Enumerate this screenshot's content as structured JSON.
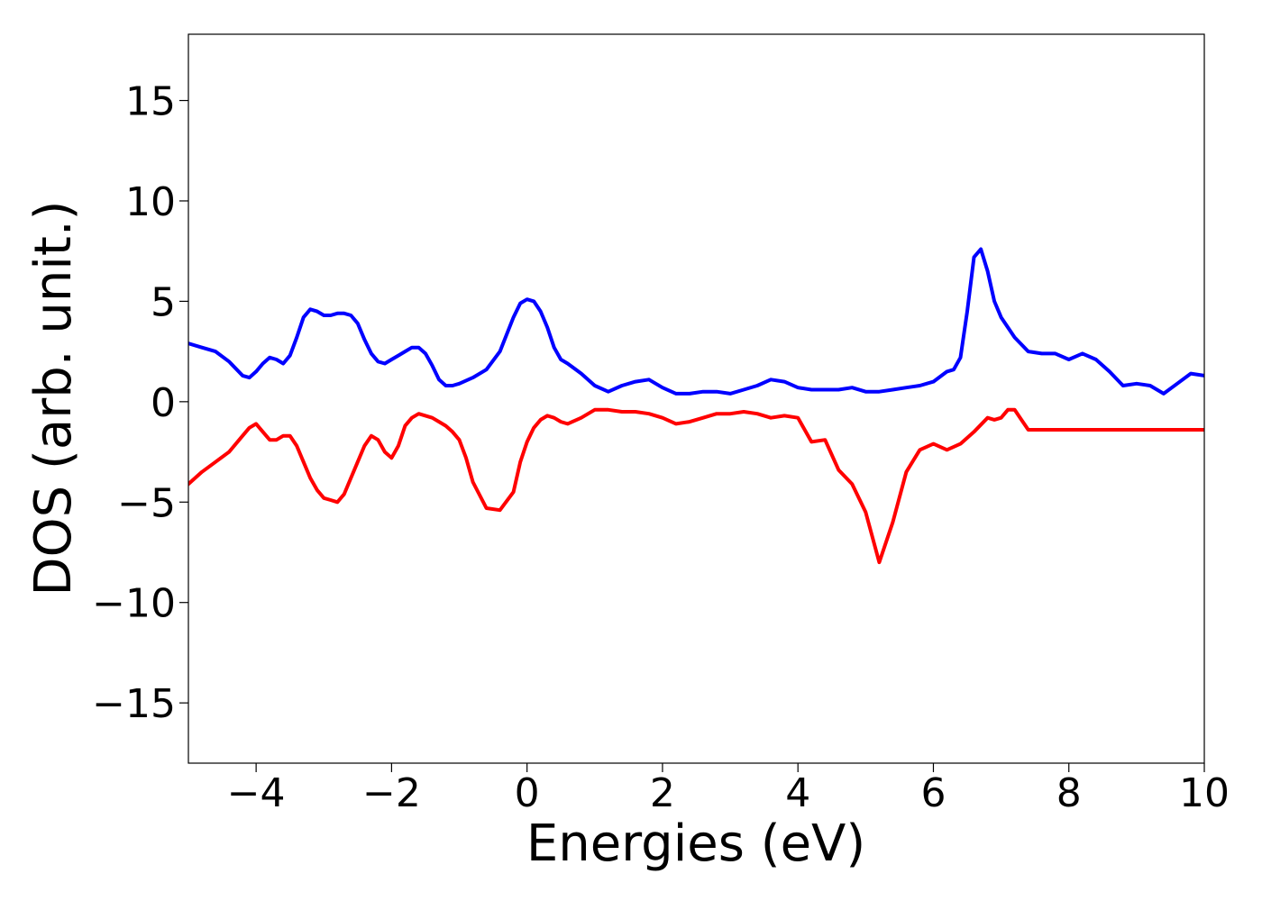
{
  "chart_data": {
    "type": "line",
    "title": "",
    "xlabel": "Energies (eV)",
    "ylabel": "DOS (arb. unit.)",
    "xlim": [
      -5,
      10
    ],
    "ylim": [
      -18,
      18.3
    ],
    "xticks": [
      -4,
      -2,
      0,
      2,
      4,
      6,
      8,
      10
    ],
    "xtick_labels": [
      "−4",
      "−2",
      "0",
      "2",
      "4",
      "6",
      "8",
      "10"
    ],
    "yticks": [
      -15,
      -10,
      -5,
      0,
      5,
      10,
      15
    ],
    "ytick_labels": [
      "−15",
      "−10",
      "−5",
      "0",
      "5",
      "10",
      "15"
    ],
    "grid": false,
    "legend": false,
    "series": [
      {
        "color": "#0000ff",
        "x": [
          -5.0,
          -4.8,
          -4.6,
          -4.4,
          -4.2,
          -4.1,
          -4.0,
          -3.9,
          -3.8,
          -3.7,
          -3.6,
          -3.5,
          -3.4,
          -3.3,
          -3.2,
          -3.1,
          -3.0,
          -2.9,
          -2.8,
          -2.7,
          -2.6,
          -2.5,
          -2.4,
          -2.3,
          -2.2,
          -2.1,
          -2.0,
          -1.9,
          -1.8,
          -1.7,
          -1.6,
          -1.5,
          -1.4,
          -1.3,
          -1.2,
          -1.1,
          -1.0,
          -0.8,
          -0.6,
          -0.4,
          -0.2,
          -0.1,
          0.0,
          0.1,
          0.2,
          0.3,
          0.4,
          0.5,
          0.6,
          0.8,
          1.0,
          1.2,
          1.4,
          1.6,
          1.8,
          2.0,
          2.2,
          2.4,
          2.6,
          2.8,
          3.0,
          3.2,
          3.4,
          3.6,
          3.8,
          4.0,
          4.2,
          4.4,
          4.6,
          4.8,
          5.0,
          5.2,
          5.4,
          5.6,
          5.8,
          6.0,
          6.2,
          6.3,
          6.4,
          6.5,
          6.6,
          6.7,
          6.8,
          6.9,
          7.0,
          7.2,
          7.4,
          7.6,
          7.8,
          8.0,
          8.2,
          8.4,
          8.6,
          8.8,
          9.0,
          9.2,
          9.4,
          9.6,
          9.8,
          10.0
        ],
        "y": [
          2.9,
          2.7,
          2.5,
          2.0,
          1.3,
          1.2,
          1.5,
          1.9,
          2.2,
          2.1,
          1.9,
          2.3,
          3.2,
          4.2,
          4.6,
          4.5,
          4.3,
          4.3,
          4.4,
          4.4,
          4.3,
          3.9,
          3.1,
          2.4,
          2.0,
          1.9,
          2.1,
          2.3,
          2.5,
          2.7,
          2.7,
          2.4,
          1.8,
          1.1,
          0.8,
          0.8,
          0.9,
          1.2,
          1.6,
          2.5,
          4.2,
          4.9,
          5.1,
          5.0,
          4.5,
          3.7,
          2.7,
          2.1,
          1.9,
          1.4,
          0.8,
          0.5,
          0.8,
          1.0,
          1.1,
          0.7,
          0.4,
          0.4,
          0.5,
          0.5,
          0.4,
          0.6,
          0.8,
          1.1,
          1.0,
          0.7,
          0.6,
          0.6,
          0.6,
          0.7,
          0.5,
          0.5,
          0.6,
          0.7,
          0.8,
          1.0,
          1.5,
          1.6,
          2.2,
          4.5,
          7.2,
          7.6,
          6.5,
          5.0,
          4.2,
          3.2,
          2.5,
          2.4,
          2.4,
          2.1,
          2.4,
          2.1,
          1.5,
          0.8,
          0.9,
          0.8,
          0.4,
          0.9,
          1.4,
          1.3
        ]
      },
      {
        "color": "#ff0000",
        "x": [
          -5.0,
          -4.8,
          -4.6,
          -4.4,
          -4.2,
          -4.1,
          -4.0,
          -3.9,
          -3.8,
          -3.7,
          -3.6,
          -3.5,
          -3.4,
          -3.3,
          -3.2,
          -3.1,
          -3.0,
          -2.9,
          -2.8,
          -2.7,
          -2.6,
          -2.5,
          -2.4,
          -2.3,
          -2.2,
          -2.1,
          -2.0,
          -1.9,
          -1.8,
          -1.7,
          -1.6,
          -1.5,
          -1.4,
          -1.3,
          -1.2,
          -1.1,
          -1.0,
          -0.9,
          -0.8,
          -0.6,
          -0.4,
          -0.2,
          -0.1,
          0.0,
          0.1,
          0.2,
          0.3,
          0.4,
          0.5,
          0.6,
          0.8,
          1.0,
          1.2,
          1.4,
          1.6,
          1.8,
          2.0,
          2.2,
          2.4,
          2.6,
          2.8,
          3.0,
          3.2,
          3.4,
          3.6,
          3.8,
          4.0,
          4.2,
          4.4,
          4.6,
          4.8,
          5.0,
          5.2,
          5.4,
          5.6,
          5.8,
          6.0,
          6.2,
          6.4,
          6.6,
          6.8,
          6.9,
          7.0,
          7.1,
          7.2,
          7.3,
          7.4,
          7.5,
          7.6,
          7.7,
          7.8,
          8.0,
          8.2,
          8.4,
          8.6,
          8.8,
          9.0,
          9.2,
          9.4,
          9.6,
          9.8,
          10.0
        ],
        "y": [
          -4.1,
          -3.5,
          -3.0,
          -2.5,
          -1.7,
          -1.3,
          -1.1,
          -1.5,
          -1.9,
          -1.9,
          -1.7,
          -1.7,
          -2.2,
          -3.0,
          -3.8,
          -4.4,
          -4.8,
          -4.9,
          -5.0,
          -4.6,
          -3.8,
          -3.0,
          -2.2,
          -1.7,
          -1.9,
          -2.5,
          -2.8,
          -2.2,
          -1.2,
          -0.8,
          -0.6,
          -0.7,
          -0.8,
          -1.0,
          -1.2,
          -1.5,
          -1.9,
          -2.8,
          -4.0,
          -5.3,
          -5.4,
          -4.5,
          -3.0,
          -2.0,
          -1.3,
          -0.9,
          -0.7,
          -0.8,
          -1.0,
          -1.1,
          -0.8,
          -0.4,
          -0.4,
          -0.5,
          -0.5,
          -0.6,
          -0.8,
          -1.1,
          -1.0,
          -0.8,
          -0.6,
          -0.6,
          -0.5,
          -0.6,
          -0.8,
          -0.7,
          -0.8,
          -2.0,
          -1.9,
          -3.4,
          -4.1,
          -5.5,
          -8.0,
          -6.0,
          -3.5,
          -2.4,
          -2.1,
          -2.4,
          -2.1,
          -1.5,
          -0.8,
          -0.9,
          -0.8,
          -0.4,
          -0.4,
          -0.9,
          -1.4,
          -1.4,
          -1.4,
          -1.4,
          -1.4,
          -1.4,
          -1.4,
          -1.4,
          -1.4,
          -1.4,
          -1.4,
          -1.4,
          -1.4,
          -1.4,
          -1.4,
          -1.4
        ]
      }
    ]
  }
}
